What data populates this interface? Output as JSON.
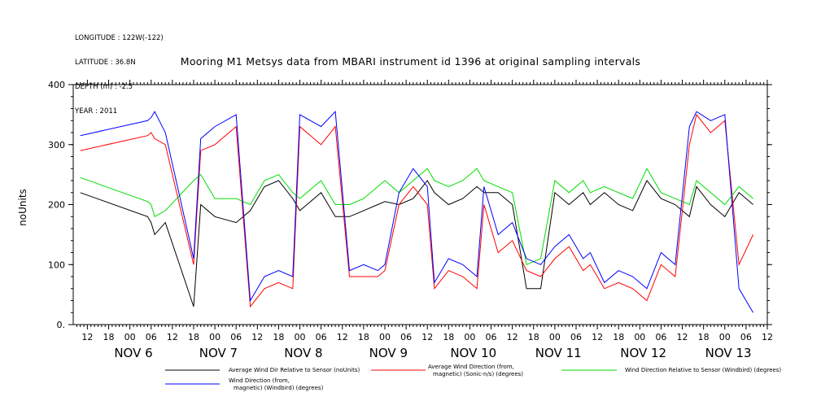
{
  "header": {
    "meta_lines": [
      "LONGITUDE : 122W(-122)",
      "LATITUDE : 36.8N",
      "DEPTH (m) : -2.5",
      "YEAR : 2011"
    ]
  },
  "chart_data": {
    "type": "line",
    "title": "Mooring M1 Metsys data from MBARI instrument id 1396 at original sampling intervals",
    "xlabel": "",
    "ylabel": "noUnits",
    "ylim": [
      0,
      400
    ],
    "yticks": [
      0,
      100,
      200,
      300,
      400
    ],
    "ytick_labels": [
      "0.",
      "100",
      "200",
      "300",
      "400"
    ],
    "xlim": [
      -16,
      180
    ],
    "x_units": "hours from NOV 6 00:00",
    "xtick_labels": [
      "12",
      "18",
      "00",
      "06",
      "12",
      "18",
      "00",
      "06",
      "12",
      "18",
      "00",
      "06",
      "12",
      "18",
      "00",
      "06",
      "12",
      "18",
      "00",
      "06",
      "12",
      "18",
      "00",
      "06",
      "12",
      "18",
      "00",
      "06",
      "12",
      "18",
      "00",
      "06",
      "12"
    ],
    "day_labels": [
      "NOV  6",
      "NOV  7",
      "NOV  8",
      "NOV  9",
      "NOV 10",
      "NOV 11",
      "NOV 12",
      "NOV 13"
    ],
    "legend_placement": "bottom",
    "series": [
      {
        "name": "Average Wind Dir Relative to Sensor (noUnits)",
        "color": "#000000",
        "x": [
          -14,
          5,
          6,
          7,
          10,
          18,
          20,
          24,
          30,
          34,
          38,
          42,
          46,
          48,
          54,
          58,
          62,
          66,
          70,
          72,
          76,
          80,
          84,
          86,
          90,
          94,
          98,
          100,
          104,
          108,
          112,
          116,
          120,
          124,
          128,
          130,
          134,
          138,
          142,
          146,
          150,
          154,
          158,
          160,
          164,
          168,
          172,
          176
        ],
        "y": [
          220,
          180,
          170,
          150,
          170,
          30,
          200,
          180,
          170,
          190,
          230,
          240,
          210,
          190,
          220,
          180,
          180,
          190,
          200,
          205,
          200,
          210,
          240,
          220,
          200,
          210,
          230,
          220,
          220,
          200,
          60,
          60,
          220,
          200,
          220,
          200,
          220,
          200,
          190,
          240,
          210,
          200,
          180,
          230,
          200,
          180,
          220,
          200
        ]
      },
      {
        "name": "Average Wind Direction (from, magnetic) (Sonic-n/s) (degrees)",
        "color": "#ff0000",
        "x": [
          -14,
          5,
          6,
          7,
          10,
          18,
          20,
          24,
          30,
          34,
          38,
          42,
          46,
          48,
          54,
          58,
          62,
          66,
          70,
          72,
          76,
          80,
          84,
          86,
          90,
          94,
          98,
          100,
          104,
          108,
          112,
          116,
          120,
          124,
          128,
          130,
          134,
          138,
          142,
          146,
          150,
          154,
          158,
          160,
          164,
          168,
          172,
          176
        ],
        "y": [
          290,
          315,
          320,
          310,
          300,
          100,
          290,
          300,
          330,
          30,
          60,
          70,
          60,
          330,
          300,
          330,
          80,
          80,
          80,
          90,
          200,
          230,
          200,
          60,
          90,
          80,
          60,
          200,
          120,
          140,
          90,
          80,
          110,
          130,
          90,
          100,
          60,
          70,
          60,
          40,
          100,
          80,
          300,
          350,
          320,
          340,
          100,
          150
        ]
      },
      {
        "name": "Wind Direction Relative to Sensor (Windbird) (degrees)",
        "color": "#00dd00",
        "x": [
          -14,
          5,
          6,
          7,
          10,
          18,
          20,
          24,
          30,
          34,
          38,
          42,
          46,
          48,
          54,
          58,
          62,
          66,
          70,
          72,
          76,
          80,
          84,
          86,
          90,
          94,
          98,
          100,
          104,
          108,
          112,
          116,
          120,
          124,
          128,
          130,
          134,
          138,
          142,
          146,
          150,
          154,
          158,
          160,
          164,
          168,
          172,
          176
        ],
        "y": [
          245,
          205,
          200,
          180,
          190,
          240,
          250,
          210,
          210,
          200,
          240,
          250,
          220,
          210,
          240,
          200,
          200,
          210,
          230,
          240,
          220,
          240,
          260,
          240,
          230,
          240,
          260,
          240,
          230,
          220,
          100,
          110,
          240,
          220,
          240,
          220,
          230,
          220,
          210,
          260,
          220,
          210,
          200,
          240,
          220,
          200,
          230,
          210
        ]
      },
      {
        "name": "Wind Direction (from, magnetic) (Windbird) (degrees)",
        "color": "#0000ff",
        "x": [
          -14,
          5,
          6,
          7,
          10,
          18,
          20,
          24,
          30,
          34,
          38,
          42,
          46,
          48,
          54,
          58,
          62,
          66,
          70,
          72,
          76,
          80,
          84,
          86,
          90,
          94,
          98,
          100,
          104,
          108,
          112,
          116,
          120,
          124,
          128,
          130,
          134,
          138,
          142,
          146,
          150,
          154,
          158,
          160,
          164,
          168,
          172,
          176
        ],
        "y": [
          315,
          340,
          345,
          355,
          320,
          110,
          310,
          330,
          350,
          40,
          80,
          90,
          80,
          350,
          330,
          355,
          90,
          100,
          90,
          100,
          220,
          260,
          230,
          70,
          110,
          100,
          80,
          230,
          150,
          170,
          110,
          100,
          130,
          150,
          110,
          120,
          70,
          90,
          80,
          60,
          120,
          100,
          330,
          355,
          340,
          350,
          60,
          20
        ]
      }
    ]
  }
}
